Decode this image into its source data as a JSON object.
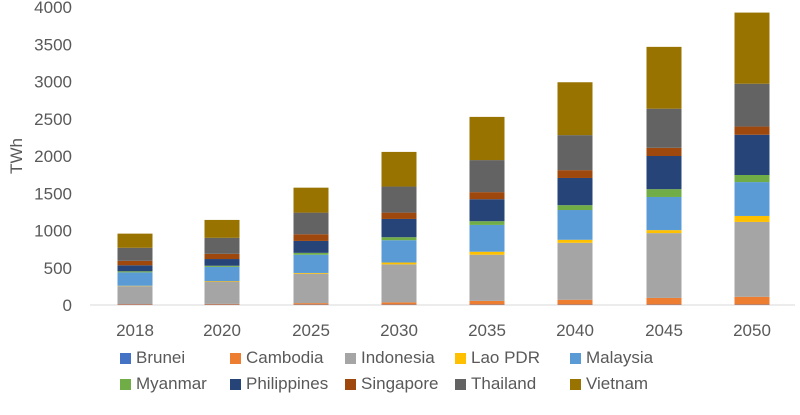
{
  "chart_data": {
    "type": "bar",
    "stacked": true,
    "title": "",
    "xlabel": "",
    "ylabel": "TWh",
    "ylim": [
      0,
      4000
    ],
    "yticks": [
      0,
      500,
      1000,
      1500,
      2000,
      2500,
      3000,
      3500,
      4000
    ],
    "grid": false,
    "legend_position": "bottom",
    "categories": [
      "2018",
      "2020",
      "2025",
      "2030",
      "2035",
      "2040",
      "2045",
      "2050"
    ],
    "series": [
      {
        "name": "Brunei",
        "color": "#4472C4",
        "values": [
          5,
          5,
          5,
          5,
          5,
          5,
          5,
          5
        ]
      },
      {
        "name": "Cambodia",
        "color": "#ED7D31",
        "values": [
          8,
          10,
          20,
          30,
          50,
          65,
          90,
          105
        ]
      },
      {
        "name": "Indonesia",
        "color": "#A5A5A5",
        "values": [
          240,
          300,
          395,
          510,
          620,
          765,
          870,
          1005
        ]
      },
      {
        "name": "Lao PDR",
        "color": "#FFC000",
        "values": [
          5,
          7,
          10,
          25,
          40,
          40,
          40,
          80
        ]
      },
      {
        "name": "Malaysia",
        "color": "#5B9BD5",
        "values": [
          180,
          190,
          245,
          300,
          360,
          400,
          445,
          455
        ]
      },
      {
        "name": "Myanmar",
        "color": "#70AD47",
        "values": [
          15,
          15,
          25,
          40,
          50,
          65,
          105,
          95
        ]
      },
      {
        "name": "Philippines",
        "color": "#264478",
        "values": [
          80,
          90,
          160,
          245,
          295,
          365,
          445,
          540
        ]
      },
      {
        "name": "Singapore",
        "color": "#9E480E",
        "values": [
          60,
          70,
          90,
          85,
          95,
          105,
          110,
          110
        ]
      },
      {
        "name": "Thailand",
        "color": "#636363",
        "values": [
          175,
          215,
          290,
          350,
          430,
          470,
          525,
          575
        ]
      },
      {
        "name": "Vietnam",
        "color": "#997300",
        "values": [
          190,
          240,
          335,
          465,
          580,
          710,
          830,
          955
        ]
      }
    ]
  }
}
